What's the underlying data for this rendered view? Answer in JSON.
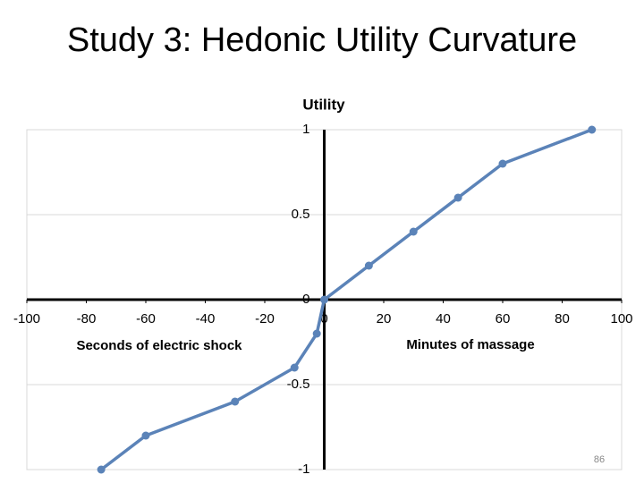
{
  "chart_data": {
    "type": "line",
    "title": "Study 3: Hedonic Utility Curvature",
    "y_label": "Utility",
    "annotations": [
      "Seconds of electric shock",
      "Minutes of massage"
    ],
    "x": [
      -75,
      -60,
      -30,
      -10,
      -2.5,
      0,
      15,
      30,
      45,
      60,
      90
    ],
    "series": [
      {
        "color": "#5b83b8",
        "values": [
          -1,
          -0.8,
          -0.6,
          -0.4,
          -0.2,
          0,
          0.2,
          0.4,
          0.6,
          0.8,
          1
        ]
      }
    ],
    "xlim": [
      -100,
      100
    ],
    "xticks": [
      -100,
      -80,
      -60,
      -40,
      -20,
      0,
      20,
      40,
      60,
      80,
      100
    ],
    "ylim": [
      -1,
      1
    ],
    "yticks": [
      -1,
      -0.5,
      0,
      0.5,
      1
    ],
    "grid": true
  },
  "page_number": "86"
}
